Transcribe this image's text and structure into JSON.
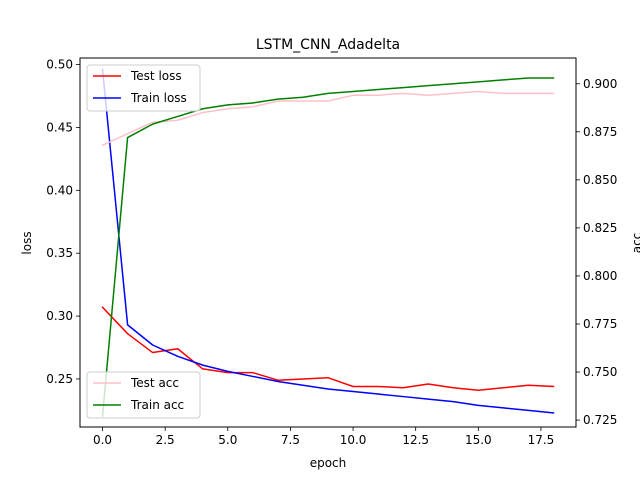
{
  "chart_data": {
    "type": "line",
    "title": "LSTM_CNN_Adadelta",
    "xlabel": "epoch",
    "ylabel": "loss",
    "y2label": "acc",
    "x": [
      0,
      1,
      2,
      3,
      4,
      5,
      6,
      7,
      8,
      9,
      10,
      11,
      12,
      13,
      14,
      15,
      16,
      17,
      18
    ],
    "xlim": [
      -0.9,
      18.9
    ],
    "ylim": [
      0.2118,
      0.5052
    ],
    "y2lim": [
      0.7214,
      0.9134
    ],
    "xticks": [
      0,
      2.5,
      5,
      7.5,
      10,
      12.5,
      15,
      17.5
    ],
    "xtick_labels": [
      "0.0",
      "2.5",
      "5.0",
      "7.5",
      "10.0",
      "12.5",
      "15.0",
      "17.5"
    ],
    "yticks": [
      0.25,
      0.3,
      0.35,
      0.4,
      0.45,
      0.5
    ],
    "ytick_labels": [
      "0.25",
      "0.30",
      "0.35",
      "0.40",
      "0.45",
      "0.50"
    ],
    "y2ticks": [
      0.725,
      0.75,
      0.775,
      0.8,
      0.825,
      0.85,
      0.875,
      0.9
    ],
    "y2tick_labels": [
      "0.725",
      "0.750",
      "0.775",
      "0.800",
      "0.825",
      "0.850",
      "0.875",
      "0.900"
    ],
    "grid": false,
    "series": [
      {
        "name": "Test loss",
        "axis": "left",
        "color": "#ff0000",
        "values": [
          0.307,
          0.286,
          0.271,
          0.274,
          0.258,
          0.255,
          0.255,
          0.249,
          0.25,
          0.251,
          0.244,
          0.244,
          0.243,
          0.246,
          0.243,
          0.241,
          0.243,
          0.245,
          0.244
        ]
      },
      {
        "name": "Train loss",
        "axis": "left",
        "color": "#0000ff",
        "values": [
          0.496,
          0.293,
          0.277,
          0.268,
          0.261,
          0.256,
          0.252,
          0.248,
          0.245,
          0.242,
          0.24,
          0.238,
          0.236,
          0.234,
          0.232,
          0.229,
          0.227,
          0.225,
          0.223
        ]
      },
      {
        "name": "Test acc",
        "axis": "right",
        "color": "#ffc0cb",
        "values": [
          0.868,
          0.874,
          0.88,
          0.881,
          0.885,
          0.887,
          0.888,
          0.891,
          0.891,
          0.891,
          0.894,
          0.894,
          0.895,
          0.894,
          0.895,
          0.896,
          0.895,
          0.895,
          0.895
        ]
      },
      {
        "name": "Train acc",
        "axis": "right",
        "color": "#008000",
        "values": [
          0.727,
          0.872,
          0.879,
          0.883,
          0.887,
          0.889,
          0.89,
          0.892,
          0.893,
          0.895,
          0.896,
          0.897,
          0.898,
          0.899,
          0.9,
          0.901,
          0.902,
          0.903,
          0.903
        ]
      }
    ],
    "legends": [
      {
        "placement": "upper-left",
        "items": [
          "Test loss",
          "Train loss"
        ]
      },
      {
        "placement": "lower-left",
        "items": [
          "Test acc",
          "Train acc"
        ]
      }
    ]
  }
}
